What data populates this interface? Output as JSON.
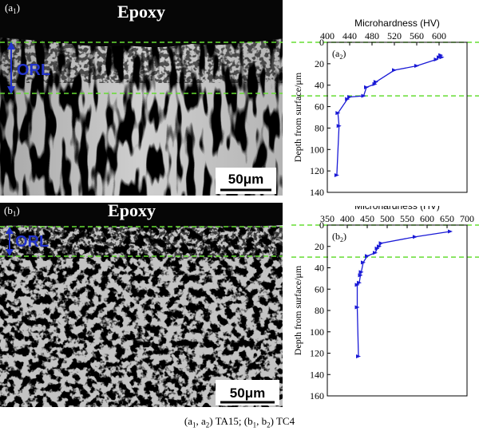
{
  "figure": {
    "caption_parts": [
      "(a",
      "1",
      ", a",
      "2",
      ") TA15; (b",
      "1",
      ", b",
      "2",
      ") TC4"
    ]
  },
  "micrographs": [
    {
      "panel_label_main": "(a",
      "panel_label_sub": "1",
      "panel_label_end": ")",
      "epoxy_label": "Epoxy",
      "orl_label": "ORL",
      "scale_bar": "50μm"
    },
    {
      "panel_label_main": "(b",
      "panel_label_sub": "1",
      "panel_label_end": ")",
      "epoxy_label": "Epoxy",
      "orl_label": "ORL",
      "scale_bar": "50μm"
    }
  ],
  "colors": {
    "line": "#1a1ad6",
    "guide": "#66dd33",
    "text": "#000000",
    "orl": "#2233cc"
  },
  "chart_data": [
    {
      "type": "line",
      "panel_label_main": "(a",
      "panel_label_sub": "2",
      "panel_label_end": ")",
      "xlabel": "Microhardness (HV)",
      "ylabel": "Depth from surface/μm",
      "xlim": [
        400,
        650
      ],
      "ylim": [
        0,
        140
      ],
      "y_inverted": true,
      "x_ticks": [
        400,
        440,
        480,
        520,
        560,
        600
      ],
      "y_ticks": [
        0,
        20,
        40,
        60,
        80,
        100,
        120,
        140
      ],
      "guide_depths": [
        0,
        50
      ],
      "series": [
        {
          "points": [
            [
              603,
              12
            ],
            [
              605,
              14
            ],
            [
              600,
              14
            ],
            [
              595,
              16
            ],
            [
              560,
              22
            ],
            [
              520,
              26
            ],
            [
              487,
              37
            ],
            [
              485,
              39
            ],
            [
              470,
              42
            ],
            [
              465,
              50
            ],
            [
              440,
              51
            ],
            [
              436,
              53
            ],
            [
              419,
              66
            ],
            [
              421,
              78
            ],
            [
              417,
              124
            ]
          ]
        }
      ]
    },
    {
      "type": "line",
      "panel_label_main": "(b",
      "panel_label_sub": "2",
      "panel_label_end": ")",
      "xlabel": "Microhardness (HV)",
      "ylabel": "Depth from surface/μm",
      "xlim": [
        350,
        700
      ],
      "ylim": [
        0,
        160
      ],
      "y_inverted": true,
      "x_ticks": [
        350,
        400,
        450,
        500,
        550,
        600,
        650,
        700
      ],
      "y_ticks": [
        0,
        20,
        40,
        60,
        80,
        100,
        120,
        140,
        160
      ],
      "guide_depths": [
        0,
        30
      ],
      "series": [
        {
          "points": [
            [
              658,
              6
            ],
            [
              570,
              11
            ],
            [
              485,
              17
            ],
            [
              480,
              20
            ],
            [
              475,
              22
            ],
            [
              470,
              26
            ],
            [
              450,
              29
            ],
            [
              440,
              35
            ],
            [
              435,
              44
            ],
            [
              433,
              47
            ],
            [
              430,
              54
            ],
            [
              425,
              56
            ],
            [
              425,
              77
            ],
            [
              428,
              123
            ]
          ]
        }
      ]
    }
  ]
}
